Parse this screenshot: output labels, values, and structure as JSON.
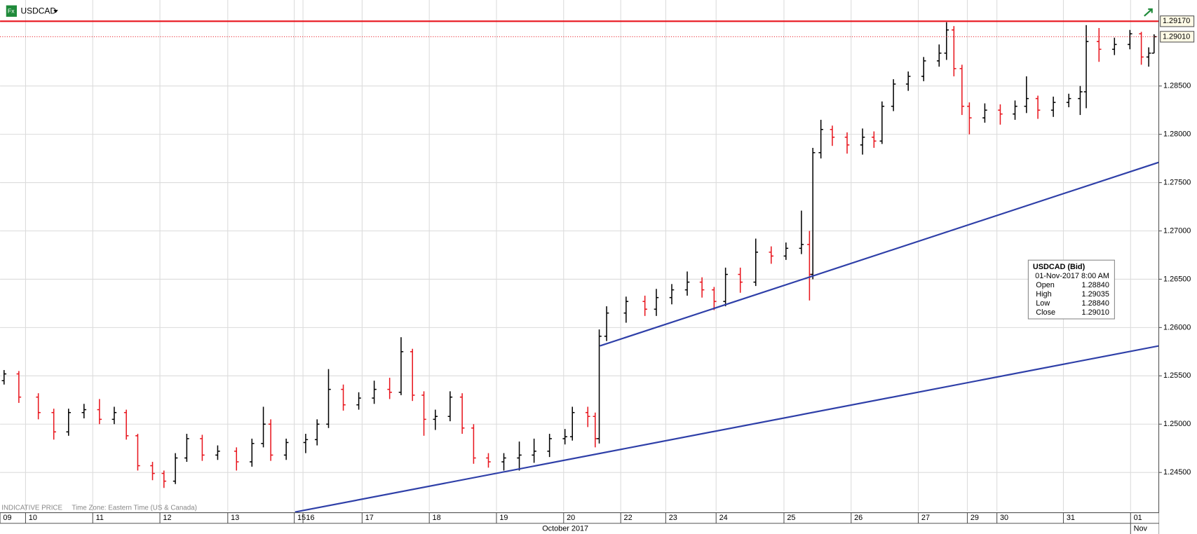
{
  "chart_data": {
    "type": "ohlc",
    "title": "USDCAD",
    "footer": [
      "INDICATIVE PRICE",
      "Time Zone: Eastern Time (US & Canada)"
    ],
    "up_color": "#000000",
    "down_color": "#e8141c",
    "grid": true,
    "xlim": [
      0,
      17.25
    ],
    "xticks": [
      {
        "value": 0,
        "label": "09"
      },
      {
        "value": 0.38,
        "label": "10"
      },
      {
        "value": 1.38,
        "label": "11"
      },
      {
        "value": 2.38,
        "label": "12"
      },
      {
        "value": 3.39,
        "label": "13"
      },
      {
        "value": 4.38,
        "label": "15"
      },
      {
        "value": 4.51,
        "label": "16"
      },
      {
        "value": 5.39,
        "label": "17"
      },
      {
        "value": 6.39,
        "label": "18"
      },
      {
        "value": 7.39,
        "label": "19"
      },
      {
        "value": 8.39,
        "label": "20"
      },
      {
        "value": 9.24,
        "label": "22"
      },
      {
        "value": 9.91,
        "label": "23"
      },
      {
        "value": 10.66,
        "label": "24"
      },
      {
        "value": 11.67,
        "label": "25"
      },
      {
        "value": 12.67,
        "label": "26"
      },
      {
        "value": 13.67,
        "label": "27"
      },
      {
        "value": 14.4,
        "label": "29"
      },
      {
        "value": 14.84,
        "label": "30"
      },
      {
        "value": 15.83,
        "label": "31"
      },
      {
        "value": 16.83,
        "label": "01"
      }
    ],
    "month_labels": [
      "October 2017",
      "Nov"
    ],
    "ylim": [
      1.241,
      1.2939
    ],
    "yticks": [
      {
        "value": 1.245,
        "label": "1.24500"
      },
      {
        "value": 1.25,
        "label": "1.25000"
      },
      {
        "value": 1.255,
        "label": "1.25500"
      },
      {
        "value": 1.26,
        "label": "1.26000"
      },
      {
        "value": 1.265,
        "label": "1.26500"
      },
      {
        "value": 1.27,
        "label": "1.27000"
      },
      {
        "value": 1.275,
        "label": "1.27500"
      },
      {
        "value": 1.28,
        "label": "1.28000"
      },
      {
        "value": 1.285,
        "label": "1.28500"
      }
    ],
    "price_lines": [
      {
        "value": 1.2917,
        "label": "1.29170",
        "style": "solid",
        "color": "#e8141c"
      },
      {
        "value": 1.2901,
        "label": "1.29010",
        "style": "dotted",
        "color": "#e8141c"
      }
    ],
    "trend_lines": [
      {
        "color": "#2e3fa8",
        "x": [
          8.93,
          17.25
        ],
        "y": [
          1.2581,
          1.2771
        ]
      },
      {
        "color": "#2e3fa8",
        "x": [
          4.39,
          17.25
        ],
        "y": [
          1.2409,
          1.2581
        ]
      }
    ],
    "ohlc": {
      "x": [
        0.06,
        0.28,
        0.57,
        0.8,
        1.02,
        1.25,
        1.48,
        1.7,
        1.88,
        2.05,
        2.27,
        2.44,
        2.61,
        2.78,
        3.01,
        3.24,
        3.52,
        3.75,
        3.92,
        4.03,
        4.26,
        4.55,
        4.72,
        4.89,
        5.11,
        5.34,
        5.57,
        5.8,
        5.97,
        6.14,
        6.31,
        6.48,
        6.7,
        6.88,
        7.05,
        7.27,
        7.5,
        7.73,
        7.95,
        8.18,
        8.41,
        8.52,
        8.75,
        8.86,
        8.92,
        9.03,
        9.32,
        9.6,
        9.77,
        10,
        10.23,
        10.45,
        10.63,
        10.8,
        11.02,
        11.25,
        11.48,
        11.7,
        11.93,
        12.05,
        12.1,
        12.22,
        12.39,
        12.61,
        12.84,
        13.01,
        13.13,
        13.3,
        13.52,
        13.75,
        13.98,
        14.09,
        14.2,
        14.32,
        14.43,
        14.66,
        14.89,
        15.11,
        15.28,
        15.45,
        15.68,
        15.91,
        16.08,
        16.17,
        16.36,
        16.59,
        16.82,
        16.99,
        17.1,
        17.18
      ],
      "open": [
        1.2545,
        1.2552,
        1.2528,
        1.2512,
        1.2492,
        1.2512,
        1.2515,
        1.2505,
        1.2512,
        1.2488,
        1.2457,
        1.2449,
        1.2441,
        1.2465,
        1.2485,
        1.2468,
        1.2472,
        1.2461,
        1.248,
        1.25,
        1.2468,
        1.2481,
        1.2484,
        1.25,
        1.2536,
        1.252,
        1.2527,
        1.2536,
        1.2533,
        1.2575,
        1.253,
        1.2505,
        1.2508,
        1.2528,
        1.2496,
        1.2465,
        1.2461,
        1.2465,
        1.2468,
        1.2472,
        1.2485,
        1.2487,
        1.2512,
        1.2508,
        1.2485,
        1.2591,
        1.2615,
        1.2627,
        1.2619,
        1.2631,
        1.2639,
        1.2647,
        1.2639,
        1.2627,
        1.2655,
        1.2647,
        1.2678,
        1.2674,
        1.2682,
        1.2686,
        1.2655,
        1.2781,
        1.2805,
        1.2797,
        1.2789,
        1.2797,
        1.2793,
        1.2829,
        1.2852,
        1.286,
        1.2876,
        1.2884,
        1.2908,
        1.2868,
        1.2829,
        1.2817,
        1.2825,
        1.2821,
        1.2829,
        1.2837,
        1.2825,
        1.2833,
        1.2837,
        1.2844,
        1.2896,
        1.2888,
        1.2893,
        1.2904,
        1.288,
        1.2884
      ],
      "high": [
        1.2556,
        1.2555,
        1.2532,
        1.2516,
        1.2516,
        1.2521,
        1.2526,
        1.2518,
        1.2515,
        1.249,
        1.2461,
        1.2452,
        1.247,
        1.249,
        1.2489,
        1.2478,
        1.2476,
        1.2485,
        1.2518,
        1.2505,
        1.2485,
        1.249,
        1.2505,
        1.2557,
        1.2541,
        1.2533,
        1.2545,
        1.2548,
        1.259,
        1.2578,
        1.2534,
        1.2515,
        1.2534,
        1.2532,
        1.25,
        1.247,
        1.247,
        1.2482,
        1.2485,
        1.249,
        1.2495,
        1.2518,
        1.2518,
        1.2512,
        1.2598,
        1.2622,
        1.2632,
        1.2633,
        1.264,
        1.2645,
        1.2658,
        1.2652,
        1.2642,
        1.2662,
        1.2662,
        1.2692,
        1.2684,
        1.2688,
        1.2721,
        1.27,
        1.2786,
        1.2815,
        1.2809,
        1.2802,
        1.2806,
        1.2803,
        1.2834,
        1.2857,
        1.2865,
        1.288,
        1.2893,
        1.2916,
        1.2912,
        1.2872,
        1.2833,
        1.2832,
        1.2831,
        1.2835,
        1.286,
        1.284,
        1.2839,
        1.2842,
        1.285,
        1.2913,
        1.291,
        1.29,
        1.2908,
        1.2906,
        1.289,
        1.29035
      ],
      "low": [
        1.2541,
        1.2522,
        1.2505,
        1.2484,
        1.2488,
        1.2506,
        1.25,
        1.25,
        1.2484,
        1.2452,
        1.2442,
        1.2434,
        1.2438,
        1.2461,
        1.2462,
        1.2463,
        1.2452,
        1.2456,
        1.2476,
        1.2462,
        1.2463,
        1.247,
        1.2478,
        1.2496,
        1.2514,
        1.2515,
        1.2521,
        1.2526,
        1.253,
        1.2524,
        1.2488,
        1.2494,
        1.2503,
        1.249,
        1.2459,
        1.2455,
        1.2452,
        1.2452,
        1.246,
        1.2466,
        1.2479,
        1.2483,
        1.2497,
        1.2476,
        1.248,
        1.2586,
        1.2605,
        1.2612,
        1.2612,
        1.2624,
        1.2633,
        1.2631,
        1.2618,
        1.2622,
        1.2636,
        1.2643,
        1.2666,
        1.267,
        1.2676,
        1.2628,
        1.265,
        1.2775,
        1.2788,
        1.278,
        1.2779,
        1.2786,
        1.279,
        1.2824,
        1.2845,
        1.2855,
        1.287,
        1.2877,
        1.286,
        1.282,
        1.28,
        1.2812,
        1.281,
        1.2815,
        1.2822,
        1.2816,
        1.2818,
        1.2828,
        1.282,
        1.2827,
        1.2875,
        1.2882,
        1.2888,
        1.2872,
        1.287,
        1.2884
      ],
      "close": [
        1.2552,
        1.2528,
        1.2512,
        1.2492,
        1.2512,
        1.2515,
        1.2505,
        1.2512,
        1.2488,
        1.2457,
        1.2449,
        1.2441,
        1.2465,
        1.2485,
        1.2468,
        1.2472,
        1.2461,
        1.248,
        1.25,
        1.2468,
        1.2481,
        1.2484,
        1.25,
        1.2536,
        1.252,
        1.2527,
        1.2536,
        1.2533,
        1.2575,
        1.253,
        1.2505,
        1.2508,
        1.2528,
        1.2496,
        1.2465,
        1.2461,
        1.2465,
        1.2468,
        1.2472,
        1.2485,
        1.2487,
        1.2512,
        1.2508,
        1.2485,
        1.2591,
        1.2615,
        1.2627,
        1.2619,
        1.2631,
        1.2639,
        1.2647,
        1.2639,
        1.2627,
        1.2655,
        1.2647,
        1.2678,
        1.2674,
        1.2682,
        1.2686,
        1.2655,
        1.2781,
        1.2805,
        1.2797,
        1.2789,
        1.2797,
        1.2793,
        1.2829,
        1.2852,
        1.286,
        1.2876,
        1.2884,
        1.2908,
        1.2868,
        1.2829,
        1.2817,
        1.2825,
        1.2821,
        1.2829,
        1.2837,
        1.2825,
        1.2833,
        1.2837,
        1.2844,
        1.2896,
        1.2888,
        1.2893,
        1.2904,
        1.288,
        1.2884,
        1.2901
      ]
    },
    "tooltip": {
      "title": "USDCAD (Bid)",
      "time": "01-Nov-2017 8:00 AM",
      "rows": [
        [
          "Open",
          "1.28840"
        ],
        [
          "High",
          "1.29035"
        ],
        [
          "Low",
          "1.28840"
        ],
        [
          "Close",
          "1.29010"
        ]
      ]
    }
  }
}
